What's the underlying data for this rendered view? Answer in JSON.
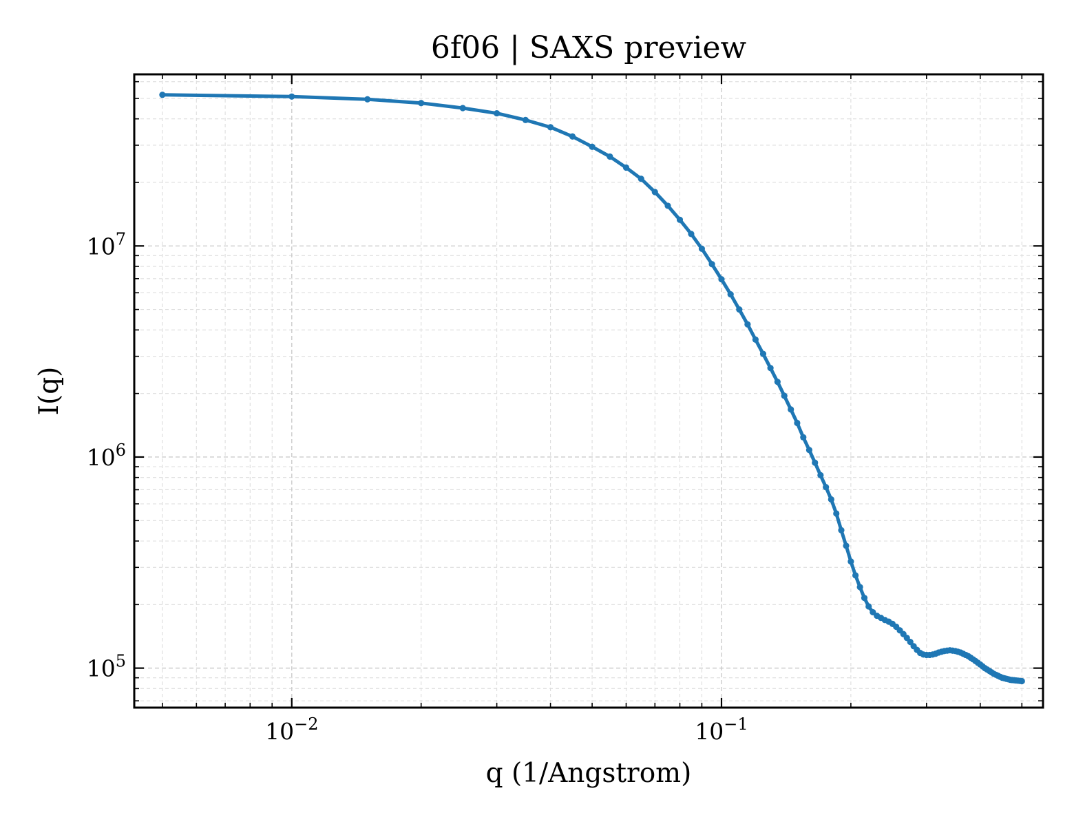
{
  "chart_data": {
    "type": "line",
    "title": "6f06 | SAXS preview",
    "xlabel": "q (1/Angstrom)",
    "ylabel": "I(q)",
    "xscale": "log",
    "yscale": "log",
    "xlim": [
      0.0043,
      0.56
    ],
    "ylim": [
      65000,
      65000000
    ],
    "grid": "both, dashed",
    "legend": "none",
    "x_ticks": [
      {
        "value": 0.01,
        "base": "10",
        "exp": "−2"
      },
      {
        "value": 0.1,
        "base": "10",
        "exp": "−1"
      }
    ],
    "y_ticks": [
      {
        "value": 100000,
        "base": "10",
        "exp": "5"
      },
      {
        "value": 1000000,
        "base": "10",
        "exp": "6"
      },
      {
        "value": 10000000,
        "base": "10",
        "exp": "7"
      }
    ],
    "colors": {
      "series": "#1f77b4"
    },
    "series": [
      {
        "x": [
          0.005,
          0.01,
          0.015,
          0.02,
          0.025,
          0.03,
          0.035,
          0.04,
          0.045,
          0.05,
          0.055,
          0.06,
          0.065,
          0.07,
          0.075,
          0.08,
          0.085,
          0.09,
          0.095,
          0.1,
          0.105,
          0.11,
          0.115,
          0.12,
          0.125,
          0.13,
          0.135,
          0.14,
          0.145,
          0.15,
          0.155,
          0.16,
          0.165,
          0.17,
          0.175,
          0.18,
          0.185,
          0.19,
          0.195,
          0.2,
          0.205,
          0.21,
          0.215,
          0.22,
          0.225,
          0.23,
          0.235,
          0.24,
          0.245,
          0.25,
          0.255,
          0.26,
          0.265,
          0.27,
          0.275,
          0.28,
          0.285,
          0.29,
          0.295,
          0.3,
          0.305,
          0.31,
          0.315,
          0.32,
          0.325,
          0.33,
          0.335,
          0.34,
          0.345,
          0.35,
          0.355,
          0.36,
          0.365,
          0.37,
          0.375,
          0.38,
          0.385,
          0.39,
          0.395,
          0.4,
          0.405,
          0.41,
          0.415,
          0.42,
          0.425,
          0.43,
          0.435,
          0.44,
          0.445,
          0.45,
          0.455,
          0.46,
          0.465,
          0.47,
          0.475,
          0.48,
          0.485,
          0.49,
          0.495,
          0.5
        ],
        "y": [
          52000000,
          51000000,
          49500000,
          47500000,
          45000000,
          42500000,
          39500000,
          36500000,
          33000000,
          29500000,
          26500000,
          23500000,
          20800000,
          18000000,
          15500000,
          13300000,
          11400000,
          9700000,
          8200000,
          6950000,
          5900000,
          5000000,
          4250000,
          3600000,
          3080000,
          2640000,
          2270000,
          1950000,
          1680000,
          1450000,
          1240000,
          1080000,
          940000,
          820000,
          720000,
          630000,
          540000,
          450000,
          380000,
          320000,
          275000,
          242000,
          215000,
          196000,
          184000,
          177000,
          173000,
          169000,
          166000,
          162000,
          157000,
          151000,
          145000,
          139000,
          133000,
          127000,
          122000,
          118000,
          116000,
          115500,
          115500,
          116000,
          117000,
          118500,
          119500,
          120500,
          121000,
          121500,
          121000,
          120500,
          119500,
          118500,
          117000,
          115500,
          114000,
          112000,
          110000,
          108000,
          106000,
          104000,
          102000,
          100000,
          98500,
          97000,
          95500,
          94000,
          93000,
          92000,
          91000,
          90000,
          89500,
          89000,
          88500,
          88000,
          87800,
          87600,
          87400,
          87200,
          87000,
          86800
        ]
      }
    ]
  }
}
